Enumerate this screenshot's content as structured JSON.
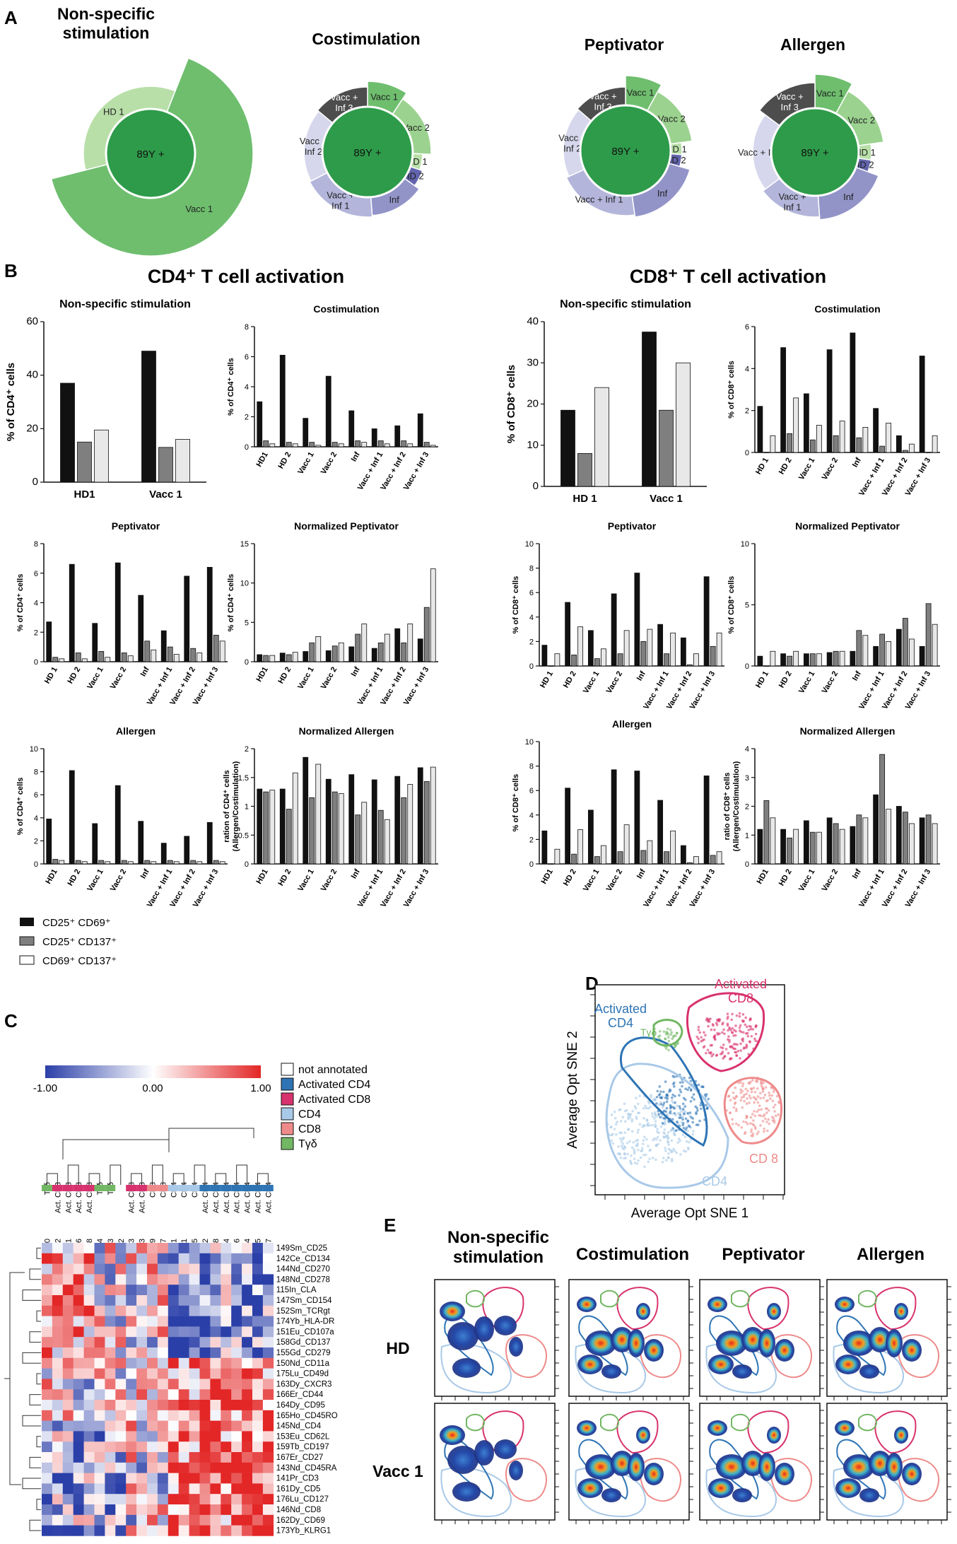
{
  "panel_labels": {
    "A": "A",
    "B": "B",
    "C": "C",
    "D": "D",
    "E": "E"
  },
  "colors": {
    "black": "#111111",
    "gray": "#7f7f7f",
    "white": "#e8e8e8",
    "center": "#2e9b4a",
    "hd": "#b8dfa8",
    "vacc": "#6ebe6e",
    "vacc_light": "#9bd28f",
    "vaccinf": "#4d4d4d",
    "vaccinf2": "#d6d7ec",
    "vaccinf1": "#b3b5db",
    "inf": "#9294c8",
    "hd2": "#6264ad"
  },
  "chart_data": [
    {
      "id": "donut-nonspecific",
      "type": "pie",
      "title": "Non-specific stimulation",
      "center": "89Y +",
      "slices": [
        {
          "label": "HD 1",
          "value": 35
        },
        {
          "label": "Vacc 1",
          "value": 65
        }
      ]
    },
    {
      "id": "donut-costim",
      "type": "pie",
      "title": "Costimulation",
      "center": "89Y +",
      "slices": [
        {
          "label": "Vacc 1",
          "value": 8
        },
        {
          "label": "Vacc 2",
          "value": 14
        },
        {
          "label": "HD 1",
          "value": 4
        },
        {
          "label": "HD 2",
          "value": 4
        },
        {
          "label": "Inf",
          "value": 12
        },
        {
          "label": "Vacc + Inf 1",
          "value": 16
        },
        {
          "label": "Vacc + Inf 2",
          "value": 16
        },
        {
          "label": "Vacc + Inf 3",
          "value": 12
        }
      ]
    },
    {
      "id": "donut-peptivator",
      "type": "pie",
      "title": "Peptivator",
      "center": "89Y +",
      "slices": [
        {
          "label": "Vacc 1",
          "value": 7
        },
        {
          "label": "Vacc 2",
          "value": 13
        },
        {
          "label": "HD 1",
          "value": 3
        },
        {
          "label": "HD 2",
          "value": 3
        },
        {
          "label": "Inf",
          "value": 16
        },
        {
          "label": "Vacc + Inf 1",
          "value": 18
        },
        {
          "label": "Vacc + Inf 2",
          "value": 16
        },
        {
          "label": "Vacc + Inf 3",
          "value": 12
        }
      ]
    },
    {
      "id": "donut-allergen",
      "type": "pie",
      "title": "Allergen",
      "center": "89Y +",
      "slices": [
        {
          "label": "Vacc 1",
          "value": 7
        },
        {
          "label": "Vacc 2",
          "value": 13
        },
        {
          "label": "HD 1",
          "value": 4
        },
        {
          "label": "HD 2",
          "value": 3
        },
        {
          "label": "Inf",
          "value": 16
        },
        {
          "label": "Vacc + Inf 1",
          "value": 14
        },
        {
          "label": "Vacc + Inf 2",
          "value": 18
        },
        {
          "label": "Vacc + Inf 3",
          "value": 13
        }
      ]
    },
    {
      "id": "cd4-nonspec",
      "type": "bar",
      "title": "Non-specific stimulation",
      "ylabel": "% of CD4⁺ cells",
      "ylim": [
        0,
        60
      ],
      "yticks": [
        0,
        20,
        40,
        60
      ],
      "categories": [
        "HD1",
        "Vacc 1"
      ],
      "series": [
        {
          "name": "CD25⁺ CD69⁺",
          "values": [
            37,
            49
          ]
        },
        {
          "name": "CD25⁺ CD137⁺",
          "values": [
            15,
            13
          ]
        },
        {
          "name": "CD69⁺ CD137⁺",
          "values": [
            19.5,
            16
          ]
        }
      ]
    },
    {
      "id": "cd4-costim",
      "type": "bar",
      "title": "Costimulation",
      "ylabel": "% of CD4⁺ cells",
      "ylim": [
        0,
        8
      ],
      "yticks": [
        0,
        2,
        4,
        6,
        8
      ],
      "categories": [
        "HD1",
        "HD 2",
        "Vacc 1",
        "Vacc 2",
        "Inf",
        "Vacc + Inf 1",
        "Vacc + Inf 2",
        "Vacc + Inf 3"
      ],
      "series": [
        {
          "name": "CD25⁺ CD69⁺",
          "values": [
            3.0,
            6.1,
            1.9,
            4.7,
            2.4,
            1.2,
            1.4,
            2.2
          ]
        },
        {
          "name": "CD25⁺ CD137⁺",
          "values": [
            0.4,
            0.3,
            0.3,
            0.3,
            0.4,
            0.4,
            0.4,
            0.3
          ]
        },
        {
          "name": "CD69⁺ CD137⁺",
          "values": [
            0.2,
            0.2,
            0.1,
            0.2,
            0.3,
            0.2,
            0.2,
            0.1
          ]
        }
      ]
    },
    {
      "id": "cd8-nonspec",
      "type": "bar",
      "title": "Non-specific stimulation",
      "ylabel": "% of CD8⁺ cells",
      "ylim": [
        0,
        40
      ],
      "yticks": [
        0,
        10,
        20,
        30,
        40
      ],
      "categories": [
        "HD 1",
        "Vacc 1"
      ],
      "series": [
        {
          "name": "CD25⁺ CD69⁺",
          "values": [
            18.5,
            37.5
          ]
        },
        {
          "name": "CD25⁺ CD137⁺",
          "values": [
            8,
            18.5
          ]
        },
        {
          "name": "CD69⁺ CD137⁺",
          "values": [
            24,
            30
          ]
        }
      ]
    },
    {
      "id": "cd8-costim",
      "type": "bar",
      "title": "Costimulation",
      "ylabel": "% of CD8⁺ cells",
      "ylim": [
        0,
        6
      ],
      "yticks": [
        0,
        2,
        4,
        6
      ],
      "categories": [
        "HD 1",
        "HD 2",
        "Vacc 1",
        "Vacc 2",
        "Inf",
        "Vacc + Inf 1",
        "Vacc + Inf 2",
        "Vacc + Inf 3"
      ],
      "series": [
        {
          "name": "CD25⁺ CD69⁺",
          "values": [
            2.2,
            5.0,
            2.8,
            4.9,
            5.7,
            2.1,
            0.8,
            4.6
          ]
        },
        {
          "name": "CD25⁺ CD137⁺",
          "values": [
            0.0,
            0.9,
            0.6,
            0.8,
            0.7,
            0.3,
            0.1,
            0.0
          ]
        },
        {
          "name": "CD69⁺ CD137⁺",
          "values": [
            0.8,
            2.6,
            1.3,
            1.5,
            1.2,
            1.4,
            0.4,
            0.8
          ]
        }
      ]
    },
    {
      "id": "cd4-pept",
      "type": "bar",
      "title": "Peptivator",
      "ylabel": "% of CD4⁺ cells",
      "ylim": [
        0,
        8
      ],
      "yticks": [
        0,
        2,
        4,
        6,
        8
      ],
      "categories": [
        "HD 1",
        "HD 2",
        "Vacc 1",
        "Vacc 2",
        "Inf",
        "Vacc + Inf 1",
        "Vacc + Inf 2",
        "Vacc + Inf 3"
      ],
      "series": [
        {
          "name": "CD25⁺ CD69⁺",
          "values": [
            2.7,
            6.6,
            2.6,
            6.7,
            4.5,
            2.1,
            5.8,
            6.4
          ]
        },
        {
          "name": "CD25⁺ CD137⁺",
          "values": [
            0.3,
            0.6,
            0.7,
            0.6,
            1.4,
            1.0,
            0.9,
            1.8
          ]
        },
        {
          "name": "CD69⁺ CD137⁺",
          "values": [
            0.2,
            0.2,
            0.3,
            0.4,
            0.8,
            0.5,
            0.6,
            1.4
          ]
        }
      ]
    },
    {
      "id": "cd4-normpept",
      "type": "bar",
      "title": "Normalized Peptivator",
      "ylabel": "% of CD4⁺ cells",
      "ylim": [
        0,
        15
      ],
      "yticks": [
        0,
        5,
        10,
        15
      ],
      "categories": [
        "HD1",
        "HD 2",
        "Vacc 1",
        "Vacc 2",
        "Inf",
        "Vacc + Inf 1",
        "Vacc + Inf 2",
        "Vacc + Inf 3"
      ],
      "series": [
        {
          "name": "CD25⁺ CD69⁺",
          "values": [
            0.9,
            1.1,
            1.3,
            1.4,
            1.9,
            1.7,
            4.2,
            2.9
          ]
        },
        {
          "name": "CD25⁺ CD137⁺",
          "values": [
            0.8,
            0.9,
            2.4,
            2.0,
            3.5,
            2.4,
            2.4,
            6.9
          ]
        },
        {
          "name": "CD69⁺ CD137⁺",
          "values": [
            0.8,
            1.2,
            3.2,
            2.4,
            4.8,
            3.5,
            4.8,
            11.8
          ]
        }
      ]
    },
    {
      "id": "cd8-pept",
      "type": "bar",
      "title": "Peptivator",
      "ylabel": "% of CD8⁺ cells",
      "ylim": [
        0,
        10
      ],
      "yticks": [
        0,
        2,
        4,
        6,
        8,
        10
      ],
      "categories": [
        "HD 1",
        "HD 2",
        "Vacc 1",
        "Vacc 2",
        "Inf",
        "Vacc + Inf 1",
        "Vacc + Inf 2",
        "Vacc + Inf 3"
      ],
      "series": [
        {
          "name": "CD25⁺ CD69⁺",
          "values": [
            1.7,
            5.2,
            2.9,
            5.9,
            7.6,
            3.4,
            2.3,
            7.3
          ]
        },
        {
          "name": "CD25⁺ CD137⁺",
          "values": [
            0.0,
            0.9,
            0.6,
            1.0,
            2.0,
            1.0,
            0.1,
            1.6
          ]
        },
        {
          "name": "CD69⁺ CD137⁺",
          "values": [
            1.0,
            3.2,
            1.4,
            2.9,
            3.0,
            2.7,
            1.0,
            2.7
          ]
        }
      ]
    },
    {
      "id": "cd8-normpept",
      "type": "bar",
      "title": "Normalized Peptivator",
      "ylabel": "% of CD8⁺ cells",
      "ylim": [
        0,
        10
      ],
      "yticks": [
        0,
        5,
        10
      ],
      "categories": [
        "HD 1",
        "HD 2",
        "Vacc 1",
        "Vacc 2",
        "Inf",
        "Vacc + Inf 1",
        "Vacc + Inf 2",
        "Vacc + Inf 3"
      ],
      "series": [
        {
          "name": "CD25⁺ CD69⁺",
          "values": [
            0.8,
            1.0,
            1.0,
            1.1,
            1.2,
            1.6,
            3.0,
            1.6
          ]
        },
        {
          "name": "CD25⁺ CD137⁺",
          "values": [
            0.0,
            0.8,
            1.0,
            1.2,
            2.9,
            2.6,
            3.9,
            5.1
          ]
        },
        {
          "name": "CD69⁺ CD137⁺",
          "values": [
            1.2,
            1.2,
            1.0,
            1.2,
            2.5,
            2.0,
            2.2,
            3.4
          ]
        }
      ]
    },
    {
      "id": "cd4-allergen",
      "type": "bar",
      "title": "Allergen",
      "ylabel": "% of CD4⁺ cells",
      "ylim": [
        0,
        10
      ],
      "yticks": [
        0,
        2,
        4,
        6,
        8,
        10
      ],
      "categories": [
        "HD1",
        "HD 2",
        "Vacc 1",
        "Vacc 2",
        "Inf",
        "Vacc + Inf 1",
        "Vacc + Inf 2",
        "Vacc + Inf 3"
      ],
      "series": [
        {
          "name": "CD25⁺ CD69⁺",
          "values": [
            3.9,
            8.1,
            3.5,
            6.8,
            3.7,
            1.8,
            2.4,
            3.6
          ]
        },
        {
          "name": "CD25⁺ CD137⁺",
          "values": [
            0.4,
            0.3,
            0.3,
            0.3,
            0.3,
            0.3,
            0.3,
            0.3
          ]
        },
        {
          "name": "CD69⁺ CD137⁺",
          "values": [
            0.3,
            0.2,
            0.2,
            0.2,
            0.2,
            0.2,
            0.2,
            0.2
          ]
        }
      ]
    },
    {
      "id": "cd4-normallergen",
      "type": "bar",
      "title": "Normalized Allergen",
      "ylabel": "ration of CD4⁺ cells (Allergen/Costimulation)",
      "ylim": [
        0,
        2
      ],
      "yticks": [
        0,
        0.5,
        1.0,
        1.5,
        2.0
      ],
      "categories": [
        "HD1",
        "HD 2",
        "Vacc 1",
        "Vacc 2",
        "Inf",
        "Vacc + Inf 1",
        "Vacc + Inf 2",
        "Vacc + Inf 3"
      ],
      "series": [
        {
          "name": "CD25⁺ CD69⁺",
          "values": [
            1.3,
            1.3,
            1.85,
            1.47,
            1.55,
            1.46,
            1.52,
            1.67
          ]
        },
        {
          "name": "CD25⁺ CD137⁺",
          "values": [
            1.25,
            0.95,
            1.15,
            1.25,
            0.85,
            0.93,
            1.15,
            1.43
          ]
        },
        {
          "name": "CD69⁺ CD137⁺",
          "values": [
            1.28,
            1.58,
            1.73,
            1.22,
            1.07,
            0.77,
            1.38,
            1.68
          ]
        }
      ]
    },
    {
      "id": "cd8-allergen",
      "type": "bar",
      "title": "Allergen",
      "ylabel": "% of CD8⁺ cells",
      "ylim": [
        0,
        10
      ],
      "yticks": [
        0,
        2,
        4,
        6,
        8,
        10
      ],
      "categories": [
        "HD1",
        "HD 2",
        "Vacc 1",
        "Vacc 2",
        "Inf",
        "Vacc + Inf 1",
        "Vacc + Inf 2",
        "Vacc + Inf 3"
      ],
      "series": [
        {
          "name": "CD25⁺ CD69⁺",
          "values": [
            2.7,
            6.2,
            4.4,
            7.7,
            7.6,
            5.2,
            1.5,
            7.2
          ]
        },
        {
          "name": "CD25⁺ CD137⁺",
          "values": [
            0.0,
            0.8,
            0.6,
            1.0,
            1.1,
            1.0,
            0.1,
            0.7
          ]
        },
        {
          "name": "CD69⁺ CD137⁺",
          "values": [
            1.2,
            2.8,
            1.5,
            3.2,
            1.9,
            2.7,
            0.6,
            1.0
          ]
        }
      ]
    },
    {
      "id": "cd8-normallergen",
      "type": "bar",
      "title": "Normalized Allergen",
      "ylabel": "ratio of CD8⁺ cells (Allergen/Costimulation)",
      "ylim": [
        0,
        4
      ],
      "yticks": [
        0,
        1,
        2,
        3,
        4
      ],
      "categories": [
        "HD1",
        "HD 2",
        "Vacc 1",
        "Vacc 2",
        "Inf",
        "Vacc + Inf 1",
        "Vacc + Inf 2",
        "Vacc + Inf 3"
      ],
      "series": [
        {
          "name": "CD25⁺ CD69⁺",
          "values": [
            1.2,
            1.2,
            1.5,
            1.6,
            1.3,
            2.4,
            2.0,
            1.6
          ]
        },
        {
          "name": "CD25⁺ CD137⁺",
          "values": [
            2.2,
            0.9,
            1.1,
            1.4,
            1.7,
            3.8,
            1.8,
            1.7
          ]
        },
        {
          "name": "CD69⁺ CD137⁺",
          "values": [
            1.6,
            1.2,
            1.1,
            1.2,
            1.6,
            1.9,
            1.4,
            1.4
          ]
        }
      ]
    }
  ],
  "section_b": {
    "cd4_title": "CD4⁺ T cell activation",
    "cd8_title": "CD8⁺ T cell activation"
  },
  "legend_b": [
    "CD25⁺ CD69⁺",
    "CD25⁺ CD137⁺",
    "CD69⁺ CD137⁺"
  ],
  "heatmap": {
    "scale_min": "-1.00",
    "scale_mid": "0.00",
    "scale_max": "1.00",
    "legend": [
      {
        "label": "not annotated",
        "color": "#ffffff"
      },
      {
        "label": "Activated CD4",
        "color": "#2e74b5"
      },
      {
        "label": "Activated CD8",
        "color": "#d8326e"
      },
      {
        "label": "CD4",
        "color": "#a9c9e8"
      },
      {
        "label": "CD8",
        "color": "#ee8a8a"
      },
      {
        "label": "Tγδ",
        "color": "#72b763"
      }
    ],
    "cell_types": [
      "Tγδ",
      "Act. CD8",
      "Act. CD8",
      "Act. CD8",
      "Act. CD8",
      "Tγδ",
      "Tγδ",
      "",
      "Act. CD8",
      "Act. CD8",
      "CD8",
      "CD8",
      "CD4",
      "CD4",
      "CD4",
      "Act. CD4",
      "Act. CD4",
      "Act. CD4",
      "Act. CD4",
      "Act. CD4",
      "Act. CD4",
      "Act. CD4"
    ],
    "clusters": [
      "cluster_20",
      "cluster_12",
      "cluster_1",
      "cluster_16",
      "cluster_8",
      "cluster_14",
      "cluster_23",
      "cluster_22",
      "cluster_3",
      "cluster_13",
      "cluster_9",
      "cluster_17",
      "cluster_21",
      "cluster_11",
      "cluster_15",
      "cluster_2",
      "cluster_18",
      "cluster_4",
      "cluster_6",
      "cluster_24",
      "cluster_5",
      "cluster_7"
    ],
    "markers": [
      "149Sm_CD25",
      "142Ce_CD134",
      "144Nd_CD270",
      "148Nd_CD278",
      "115In_CLA",
      "147Sm_CD154",
      "152Sm_TCRgt",
      "174Yb_HLA-DR",
      "151Eu_CD107a",
      "158Gd_CD137",
      "155Gd_CD279",
      "150Nd_CD11a",
      "175Lu_CD49d",
      "163Dy_CXCR3",
      "166Er_CD44",
      "164Dy_CD95",
      "165Ho_CD45RO",
      "145Nd_CD4",
      "153Eu_CD62L",
      "159Tb_CD197",
      "167Er_CD27",
      "143Nd_CD45RA",
      "141Pr_CD3",
      "161Dy_CD5",
      "176Lu_CD127",
      "146Nd_CD8",
      "162Dy_CD69",
      "173Yb_KLRG1"
    ]
  },
  "tsne": {
    "xlabel": "Average Opt SNE 1",
    "ylabel": "Average Opt SNE 2",
    "labels": {
      "act_cd4": "Activated CD4",
      "act_cd8": "Activated CD8",
      "tgd": "Tγδ",
      "cd4": "CD4",
      "cd8": "CD 8"
    }
  },
  "density": {
    "cols": [
      "Non-specific stimulation",
      "Costimulation",
      "Peptivator",
      "Allergen"
    ],
    "rows": [
      "HD",
      "Vacc 1"
    ]
  }
}
